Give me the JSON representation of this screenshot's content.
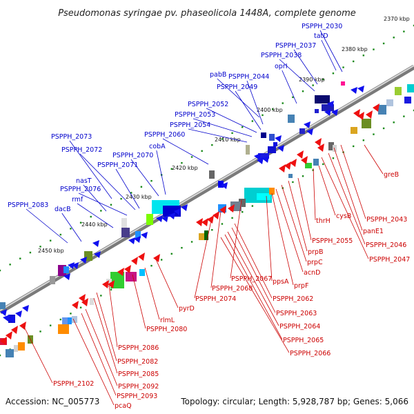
{
  "title": "Pseudomonas syringae pv. phaseolicola 1448A, complete genome",
  "footer": {
    "accession": "Accession: NC_005773",
    "info": "Topology: circular; Length: 5,928,787 bp; Genes: 5,066"
  },
  "scale_labels": [
    "2370 kbp",
    "2380 kbp",
    "2390 kbp",
    "2400 kbp",
    "2410 kbp",
    "2420 kbp",
    "2430 kbp",
    "2440 kbp",
    "2450 kbp"
  ],
  "upper_labels": [
    "PSPPH_2030",
    "tatD",
    "PSPPH_2037",
    "PSPPH_2038",
    "oprI",
    "pabB",
    "PSPPH_2044",
    "PSPPH_2049",
    "PSPPH_2052",
    "PSPPH_2053",
    "PSPPH_2054",
    "PSPPH_2060",
    "cobA",
    "PSPPH_2070",
    "PSPPH_2073",
    "PSPPH_2072",
    "PSPPH_2071",
    "nasT",
    "PSPPH_2076",
    "rmf",
    "PSPPH_2083",
    "dacB"
  ],
  "lower_labels": [
    "greB",
    "PSPPH_2043",
    "panE1",
    "PSPPH_2046",
    "PSPPH_2047",
    "cysB",
    "thrH",
    "PSPPH_2055",
    "prpB",
    "prpC",
    "acnD",
    "prpF",
    "ppsA",
    "PSPPH_2067",
    "PSPPH_2068",
    "PSPPH_2074",
    "PSPPH_2062",
    "PSPPH_2063",
    "PSPPH_2064",
    "PSPPH_2065",
    "PSPPH_2066",
    "pyrD",
    "rlmL",
    "PSPPH_2080",
    "PSPPH_2086",
    "PSPPH_2082",
    "PSPPH_2085",
    "PSPPH_2092",
    "PSPPH_2093",
    "pcaQ",
    "PSPPH_2102"
  ],
  "colors": {
    "upper_label": "#0000cc",
    "lower_label": "#cc0000",
    "backbone": "#8a8a8a",
    "tick": "#1a8a1a"
  }
}
